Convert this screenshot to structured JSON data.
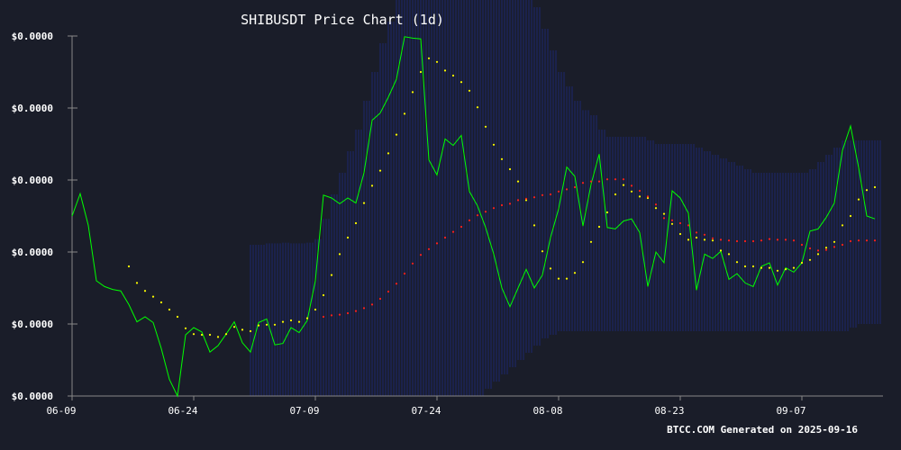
{
  "chart_data": {
    "type": "line",
    "title": "SHIBUSDT Price Chart (1d)",
    "footer": "BTCC.COM Generated on 2025-09-16",
    "x_start": "2025-06-09",
    "x_tick_labels": [
      "06-09",
      "06-24",
      "07-09",
      "07-24",
      "08-08",
      "08-23",
      "09-07"
    ],
    "y_tick_labels": [
      "$0.0000",
      "$0.0000",
      "$0.0000",
      "$0.0000",
      "$0.0000",
      "$0.0000"
    ],
    "ylim": [
      1.05e-05,
      1.55e-05
    ],
    "grid": false,
    "colors": {
      "background": "#1a1d29",
      "price": "#00ff00",
      "ma20": "#ffff00",
      "ma50": "#ff2020",
      "bands": "#1f2fa8",
      "axis": "#888888",
      "text": "#ffffff"
    },
    "series": [
      {
        "style": "solid-line",
        "color": "#00ff00",
        "values": [
          1.3e-05,
          1.331e-05,
          1.287e-05,
          1.21e-05,
          1.202e-05,
          1.198e-05,
          1.196e-05,
          1.177e-05,
          1.153e-05,
          1.16e-05,
          1.152e-05,
          1.116e-05,
          1.073e-05,
          1.05e-05,
          1.135e-05,
          1.145e-05,
          1.139e-05,
          1.111e-05,
          1.12e-05,
          1.136e-05,
          1.153e-05,
          1.124e-05,
          1.111e-05,
          1.152e-05,
          1.157e-05,
          1.121e-05,
          1.123e-05,
          1.145e-05,
          1.138e-05,
          1.155e-05,
          1.21e-05,
          1.329e-05,
          1.325e-05,
          1.317e-05,
          1.325e-05,
          1.318e-05,
          1.36e-05,
          1.433e-05,
          1.443e-05,
          1.465e-05,
          1.49e-05,
          1.549e-05,
          1.547e-05,
          1.546e-05,
          1.378e-05,
          1.357e-05,
          1.407e-05,
          1.398e-05,
          1.412e-05,
          1.334e-05,
          1.314e-05,
          1.284e-05,
          1.247e-05,
          1.2e-05,
          1.174e-05,
          1.2e-05,
          1.226e-05,
          1.2e-05,
          1.218e-05,
          1.27e-05,
          1.31e-05,
          1.368e-05,
          1.355e-05,
          1.286e-05,
          1.344e-05,
          1.386e-05,
          1.284e-05,
          1.282e-05,
          1.293e-05,
          1.296e-05,
          1.277e-05,
          1.202e-05,
          1.25e-05,
          1.235e-05,
          1.335e-05,
          1.325e-05,
          1.304e-05,
          1.197e-05,
          1.247e-05,
          1.241e-05,
          1.251e-05,
          1.212e-05,
          1.22e-05,
          1.207e-05,
          1.202e-05,
          1.23e-05,
          1.235e-05,
          1.204e-05,
          1.228e-05,
          1.222e-05,
          1.235e-05,
          1.279e-05,
          1.282e-05,
          1.298e-05,
          1.318e-05,
          1.391e-05,
          1.425e-05,
          1.367e-05,
          1.3e-05,
          1.296e-05
        ]
      },
      {
        "style": "dotted",
        "color": "#ffff00",
        "values": [
          null,
          null,
          null,
          null,
          null,
          null,
          null,
          1.23e-05,
          1.207e-05,
          1.196e-05,
          1.188e-05,
          1.18e-05,
          1.17e-05,
          1.16e-05,
          1.144e-05,
          1.136e-05,
          1.135e-05,
          1.135e-05,
          1.132e-05,
          1.136e-05,
          1.146e-05,
          1.142e-05,
          1.14e-05,
          1.148e-05,
          1.149e-05,
          1.149e-05,
          1.153e-05,
          1.155e-05,
          1.153e-05,
          1.158e-05,
          1.17e-05,
          1.19e-05,
          1.218e-05,
          1.247e-05,
          1.27e-05,
          1.29e-05,
          1.318e-05,
          1.342e-05,
          1.363e-05,
          1.387e-05,
          1.413e-05,
          1.442e-05,
          1.472e-05,
          1.5e-05,
          1.519e-05,
          1.514e-05,
          1.502e-05,
          1.495e-05,
          1.486e-05,
          1.474e-05,
          1.451e-05,
          1.424e-05,
          1.399e-05,
          1.379e-05,
          1.365e-05,
          1.348e-05,
          1.322e-05,
          1.287e-05,
          1.251e-05,
          1.227e-05,
          1.213e-05,
          1.213e-05,
          1.221e-05,
          1.236e-05,
          1.264e-05,
          1.285e-05,
          1.305e-05,
          1.33e-05,
          1.343e-05,
          1.334e-05,
          1.327e-05,
          1.325e-05,
          1.311e-05,
          1.303e-05,
          1.289e-05,
          1.275e-05,
          1.267e-05,
          1.27e-05,
          1.267e-05,
          1.266e-05,
          1.252e-05,
          1.247e-05,
          1.236e-05,
          1.23e-05,
          1.23e-05,
          1.228e-05,
          1.228e-05,
          1.224e-05,
          1.226e-05,
          1.228e-05,
          1.235e-05,
          1.239e-05,
          1.247e-05,
          1.256e-05,
          1.264e-05,
          1.287e-05,
          1.3e-05,
          1.323e-05,
          1.336e-05,
          1.34e-05
        ]
      },
      {
        "style": "dotted",
        "color": "#ff2020",
        "values": [
          null,
          null,
          null,
          null,
          null,
          null,
          null,
          null,
          null,
          null,
          null,
          null,
          null,
          null,
          null,
          null,
          null,
          null,
          null,
          null,
          null,
          null,
          null,
          null,
          null,
          null,
          null,
          null,
          null,
          null,
          null,
          1.16e-05,
          1.162e-05,
          1.163e-05,
          1.165e-05,
          1.168e-05,
          1.172e-05,
          1.177e-05,
          1.185e-05,
          1.195e-05,
          1.206e-05,
          1.22e-05,
          1.234e-05,
          1.246e-05,
          1.254e-05,
          1.262e-05,
          1.27e-05,
          1.278e-05,
          1.285e-05,
          1.294e-05,
          1.301e-05,
          1.306e-05,
          1.311e-05,
          1.315e-05,
          1.317e-05,
          1.322e-05,
          1.324e-05,
          1.326e-05,
          1.329e-05,
          1.33e-05,
          1.334e-05,
          1.337e-05,
          1.34e-05,
          1.346e-05,
          1.348e-05,
          1.348e-05,
          1.351e-05,
          1.351e-05,
          1.351e-05,
          1.342e-05,
          1.335e-05,
          1.327e-05,
          1.316e-05,
          1.297e-05,
          1.294e-05,
          1.29e-05,
          1.287e-05,
          1.277e-05,
          1.274e-05,
          1.269e-05,
          1.267e-05,
          1.266e-05,
          1.265e-05,
          1.265e-05,
          1.265e-05,
          1.266e-05,
          1.268e-05,
          1.267e-05,
          1.267e-05,
          1.266e-05,
          1.26e-05,
          1.255e-05,
          1.252e-05,
          1.253e-05,
          1.257e-05,
          1.26e-05,
          1.265e-05,
          1.266e-05,
          1.266e-05,
          1.266e-05
        ]
      }
    ],
    "bands": {
      "color": "#1f2fa8",
      "upper": [
        null,
        null,
        null,
        null,
        null,
        null,
        null,
        null,
        null,
        null,
        null,
        null,
        null,
        null,
        null,
        null,
        null,
        null,
        null,
        null,
        null,
        null,
        1.26e-05,
        1.26e-05,
        1.262e-05,
        1.262e-05,
        1.263e-05,
        1.262e-05,
        1.262e-05,
        1.263e-05,
        1.268e-05,
        1.296e-05,
        1.33e-05,
        1.36e-05,
        1.39e-05,
        1.42e-05,
        1.46e-05,
        1.5e-05,
        1.54e-05,
        1.57e-05,
        1.6e-05,
        1.64e-05,
        1.66e-05,
        1.68e-05,
        1.69e-05,
        1.69e-05,
        1.69e-05,
        1.69e-05,
        1.69e-05,
        1.69e-05,
        1.69e-05,
        1.69e-05,
        1.69e-05,
        1.68e-05,
        1.66e-05,
        1.64e-05,
        1.62e-05,
        1.59e-05,
        1.56e-05,
        1.53e-05,
        1.5e-05,
        1.48e-05,
        1.46e-05,
        1.447e-05,
        1.44e-05,
        1.42e-05,
        1.41e-05,
        1.41e-05,
        1.41e-05,
        1.41e-05,
        1.41e-05,
        1.405e-05,
        1.4e-05,
        1.4e-05,
        1.4e-05,
        1.4e-05,
        1.4e-05,
        1.395e-05,
        1.39e-05,
        1.385e-05,
        1.38e-05,
        1.375e-05,
        1.37e-05,
        1.365e-05,
        1.36e-05,
        1.36e-05,
        1.36e-05,
        1.36e-05,
        1.36e-05,
        1.36e-05,
        1.36e-05,
        1.365e-05,
        1.375e-05,
        1.385e-05,
        1.395e-05,
        1.405e-05,
        1.405e-05,
        1.405e-05,
        1.405e-05,
        1.405e-05
      ],
      "lower": [
        null,
        null,
        null,
        null,
        null,
        null,
        null,
        null,
        null,
        null,
        null,
        null,
        null,
        null,
        null,
        null,
        null,
        null,
        null,
        null,
        null,
        null,
        1.05e-05,
        1.05e-05,
        1.05e-05,
        1.05e-05,
        1.05e-05,
        1.05e-05,
        1.05e-05,
        1.05e-05,
        1.05e-05,
        1.05e-05,
        1.05e-05,
        1.05e-05,
        1.05e-05,
        1.05e-05,
        1.05e-05,
        1.05e-05,
        1.05e-05,
        1.05e-05,
        1.05e-05,
        1.05e-05,
        1.05e-05,
        1.05e-05,
        1.05e-05,
        1.05e-05,
        1.05e-05,
        1.05e-05,
        1.05e-05,
        1.05e-05,
        1.05e-05,
        1.06e-05,
        1.07e-05,
        1.08e-05,
        1.09e-05,
        1.1e-05,
        1.11e-05,
        1.12e-05,
        1.13e-05,
        1.135e-05,
        1.14e-05,
        1.14e-05,
        1.14e-05,
        1.14e-05,
        1.14e-05,
        1.14e-05,
        1.14e-05,
        1.14e-05,
        1.14e-05,
        1.14e-05,
        1.14e-05,
        1.14e-05,
        1.14e-05,
        1.14e-05,
        1.14e-05,
        1.14e-05,
        1.14e-05,
        1.14e-05,
        1.14e-05,
        1.14e-05,
        1.14e-05,
        1.14e-05,
        1.14e-05,
        1.14e-05,
        1.14e-05,
        1.14e-05,
        1.14e-05,
        1.14e-05,
        1.14e-05,
        1.14e-05,
        1.14e-05,
        1.14e-05,
        1.14e-05,
        1.14e-05,
        1.14e-05,
        1.14e-05,
        1.145e-05,
        1.15e-05,
        1.15e-05,
        1.15e-05
      ]
    }
  }
}
